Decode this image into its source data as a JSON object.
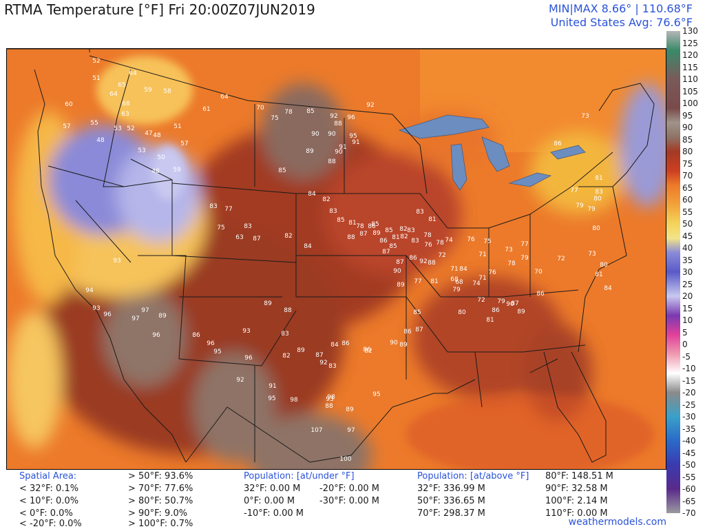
{
  "header": {
    "title": "RTMA Temperature [°F]  Fri 20:00Z07JUN2019",
    "minmax": "MIN|MAX 8.66°  |  110.68°F",
    "average": "United States Avg: 76.6°F"
  },
  "colors": {
    "accent_text": "#2a52d8",
    "hot": "#a23b24",
    "very_hot": "#8e7366",
    "warm": "#f07e2a",
    "mild": "#f3b143",
    "cool": "#f4dc6a",
    "cold": "#5f5fc8",
    "coldest": "#c8c8f0"
  },
  "scale": {
    "ticks": [
      "130",
      "125",
      "120",
      "115",
      "110",
      "105",
      "100",
      "95",
      "90",
      "85",
      "80",
      "75",
      "70",
      "65",
      "60",
      "55",
      "50",
      "45",
      "40",
      "35",
      "30",
      "25",
      "20",
      "15",
      "10",
      "5",
      "0",
      "-5",
      "-10",
      "-15",
      "-20",
      "-25",
      "-30",
      "-35",
      "-40",
      "-45",
      "-50",
      "-55",
      "-60",
      "-65",
      "-70"
    ]
  },
  "spatial": {
    "heading": "Spatial Area:",
    "col1": [
      "< 32°F: 0.1%",
      "< 10°F: 0.0%",
      "< 0°F: 0.0%",
      "< -20°F: 0.0%"
    ],
    "col2": [
      "> 50°F: 93.6%",
      "> 70°F: 77.6%",
      "> 80°F: 50.7%",
      "> 90°F: 9.0%",
      "> 100°F: 0.7%"
    ]
  },
  "pop_under": {
    "heading": "Population: [at/under °F]",
    "col1": [
      "32°F: 0.00 M",
      "0°F: 0.00 M",
      "-10°F: 0.00 M"
    ],
    "col2": [
      "-20°F: 0.00 M",
      "-30°F: 0.00 M"
    ]
  },
  "pop_above": {
    "heading": "Population: [at/above °F]",
    "col1": [
      "32°F: 336.99 M",
      "50°F: 336.65 M",
      "70°F: 298.37 M"
    ],
    "col2": [
      "80°F: 148.51 M",
      "90°F: 32.58 M",
      "100°F: 2.14 M",
      "110°F: 0.00 M"
    ]
  },
  "footer": {
    "site": "weathermodels.com"
  },
  "map_labels": [
    {
      "t": "52"
    },
    {
      "t": "51"
    },
    {
      "t": "64"
    },
    {
      "t": "65"
    },
    {
      "t": "64"
    },
    {
      "t": "59"
    },
    {
      "t": "58"
    },
    {
      "t": "60"
    },
    {
      "t": "68"
    },
    {
      "t": "63"
    },
    {
      "t": "57"
    },
    {
      "t": "55"
    },
    {
      "t": "53"
    },
    {
      "t": "52"
    },
    {
      "t": "47"
    },
    {
      "t": "51"
    },
    {
      "t": "48"
    },
    {
      "t": "48"
    },
    {
      "t": "53"
    },
    {
      "t": "50"
    },
    {
      "t": "48"
    },
    {
      "t": "59"
    },
    {
      "t": "57"
    },
    {
      "t": "61"
    },
    {
      "t": "64"
    },
    {
      "t": "70"
    },
    {
      "t": "75"
    },
    {
      "t": "78"
    },
    {
      "t": "85"
    },
    {
      "t": "92"
    },
    {
      "t": "96"
    },
    {
      "t": "92"
    },
    {
      "t": "90"
    },
    {
      "t": "88"
    },
    {
      "t": "90"
    },
    {
      "t": "91"
    },
    {
      "t": "95"
    },
    {
      "t": "91"
    },
    {
      "t": "89"
    },
    {
      "t": "88"
    },
    {
      "t": "90"
    },
    {
      "t": "85"
    },
    {
      "t": "84"
    },
    {
      "t": "82"
    },
    {
      "t": "83"
    },
    {
      "t": "85"
    },
    {
      "t": "81"
    },
    {
      "t": "78"
    },
    {
      "t": "85"
    },
    {
      "t": "89"
    },
    {
      "t": "86"
    },
    {
      "t": "87"
    },
    {
      "t": "85"
    },
    {
      "t": "82"
    },
    {
      "t": "81"
    },
    {
      "t": "83"
    },
    {
      "t": "83"
    },
    {
      "t": "81"
    },
    {
      "t": "78"
    },
    {
      "t": "76"
    },
    {
      "t": "78"
    },
    {
      "t": "74"
    },
    {
      "t": "72"
    },
    {
      "t": "71"
    },
    {
      "t": "68"
    },
    {
      "t": "71"
    },
    {
      "t": "76"
    },
    {
      "t": "79"
    },
    {
      "t": "70"
    },
    {
      "t": "72"
    },
    {
      "t": "73"
    },
    {
      "t": "81"
    },
    {
      "t": "84"
    },
    {
      "t": "80"
    },
    {
      "t": "80"
    },
    {
      "t": "77"
    },
    {
      "t": "79"
    },
    {
      "t": "80"
    },
    {
      "t": "79"
    },
    {
      "t": "83"
    },
    {
      "t": "81"
    },
    {
      "t": "86"
    },
    {
      "t": "73"
    },
    {
      "t": "93"
    },
    {
      "t": "94"
    },
    {
      "t": "93"
    },
    {
      "t": "96"
    },
    {
      "t": "97"
    },
    {
      "t": "97"
    },
    {
      "t": "89"
    },
    {
      "t": "96"
    },
    {
      "t": "86"
    },
    {
      "t": "96"
    },
    {
      "t": "95"
    },
    {
      "t": "93"
    },
    {
      "t": "96"
    },
    {
      "t": "92"
    },
    {
      "t": "91"
    },
    {
      "t": "95"
    },
    {
      "t": "98"
    },
    {
      "t": "92"
    },
    {
      "t": "93"
    },
    {
      "t": "98"
    },
    {
      "t": "95"
    },
    {
      "t": "107"
    },
    {
      "t": "97"
    },
    {
      "t": "100"
    },
    {
      "t": "89"
    },
    {
      "t": "88"
    },
    {
      "t": "89"
    },
    {
      "t": "83"
    },
    {
      "t": "82"
    },
    {
      "t": "84"
    },
    {
      "t": "86"
    },
    {
      "t": "87"
    },
    {
      "t": "83"
    },
    {
      "t": "82"
    },
    {
      "t": "89"
    },
    {
      "t": "88"
    },
    {
      "t": "86"
    },
    {
      "t": "90"
    },
    {
      "t": "86"
    },
    {
      "t": "87"
    },
    {
      "t": "89"
    },
    {
      "t": "85"
    },
    {
      "t": "89"
    },
    {
      "t": "90"
    },
    {
      "t": "87"
    },
    {
      "t": "86"
    },
    {
      "t": "92"
    },
    {
      "t": "88"
    },
    {
      "t": "84"
    },
    {
      "t": "80"
    },
    {
      "t": "86"
    },
    {
      "t": "90"
    },
    {
      "t": "87"
    },
    {
      "t": "89"
    },
    {
      "t": "86"
    },
    {
      "t": "73"
    },
    {
      "t": "71"
    },
    {
      "t": "68"
    },
    {
      "t": "76"
    },
    {
      "t": "75"
    },
    {
      "t": "78"
    },
    {
      "t": "77"
    },
    {
      "t": "83"
    },
    {
      "t": "75"
    },
    {
      "t": "77"
    },
    {
      "t": "83"
    },
    {
      "t": "63"
    },
    {
      "t": "87"
    },
    {
      "t": "82"
    },
    {
      "t": "84"
    },
    {
      "t": "88"
    },
    {
      "t": "87"
    },
    {
      "t": "86"
    },
    {
      "t": "85"
    },
    {
      "t": "82"
    },
    {
      "t": "83"
    },
    {
      "t": "77"
    },
    {
      "t": "81"
    },
    {
      "t": "79"
    },
    {
      "t": "74"
    },
    {
      "t": "72"
    },
    {
      "t": "81"
    },
    {
      "t": "79"
    }
  ]
}
